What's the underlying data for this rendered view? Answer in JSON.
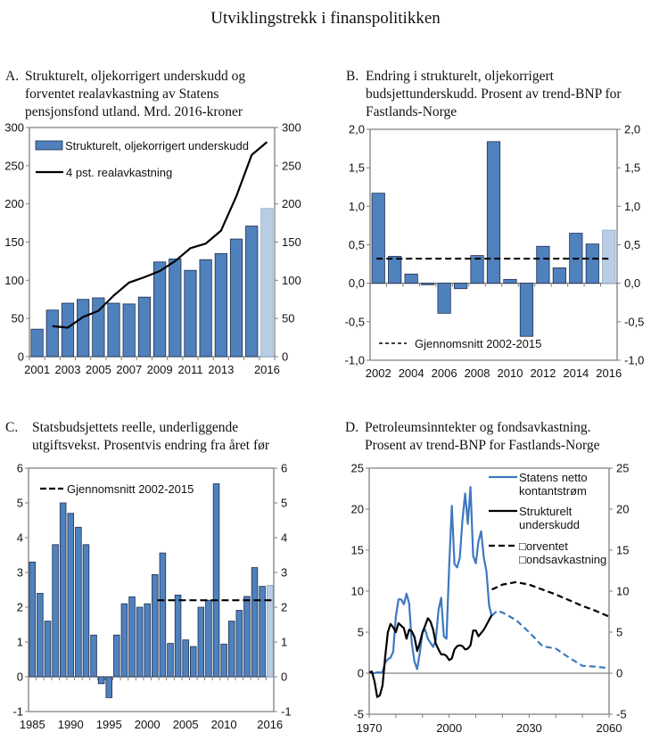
{
  "page": {
    "title": "Utviklingstrekk i finanspolitikken"
  },
  "colors": {
    "bar": "#4f81bd",
    "bar_border": "#1f3050",
    "bar_projection": "#b9cde5",
    "line_black": "#000000",
    "line_blue": "#3f78c0",
    "axis": "#7f7f7f"
  },
  "chart_data": [
    {
      "id": "A",
      "type": "bar",
      "letter": "A.",
      "title_lines": [
        "Strukturelt, oljekorrigert underskudd og",
        "forventet realavkastning av Statens",
        "pensjonsfond utland. Mrd. 2016-kroner"
      ],
      "categories": [
        2001,
        2002,
        2003,
        2004,
        2005,
        2006,
        2007,
        2008,
        2009,
        2010,
        2011,
        2012,
        2013,
        2014,
        2015,
        2016
      ],
      "x_tick_labels": [
        "2001",
        "2003",
        "2005",
        "2007",
        "2009",
        "2011",
        "2013",
        "2016"
      ],
      "x_tick_label_years": [
        2001,
        2003,
        2005,
        2007,
        2009,
        2011,
        2013,
        2016
      ],
      "ylim": [
        0,
        300
      ],
      "yticks": [
        0,
        50,
        100,
        150,
        200,
        250,
        300
      ],
      "ytick_labels": [
        "0",
        "50",
        "100",
        "150",
        "200",
        "250",
        "300"
      ],
      "series": [
        {
          "name": "Strukturelt, oljekorrigert underskudd",
          "kind": "bar",
          "values": [
            36,
            61,
            70,
            75,
            77,
            70,
            69,
            78,
            124,
            128,
            113,
            127,
            135,
            154,
            171,
            194
          ],
          "projection_from": 2016
        },
        {
          "name": "4 pst. realavkastning",
          "kind": "line",
          "x": [
            2002,
            2003,
            2004,
            2005,
            2006,
            2007,
            2008,
            2009,
            2010,
            2011,
            2012,
            2013,
            2014,
            2015,
            2016
          ],
          "values": [
            40,
            38,
            52,
            60,
            80,
            97,
            104,
            112,
            125,
            142,
            148,
            165,
            210,
            264,
            281
          ]
        }
      ],
      "legend": [
        "Strukturelt, oljekorrigert underskudd",
        "4 pst. realavkastning"
      ],
      "legend_position": "top-left",
      "grid": false
    },
    {
      "id": "B",
      "type": "bar",
      "letter": "B.",
      "title_lines": [
        "Endring i strukturelt, oljekorrigert",
        "budsjettunderskudd. Prosent av trend-BNP for",
        "Fastlands-Norge"
      ],
      "categories": [
        2002,
        2003,
        2004,
        2005,
        2006,
        2007,
        2008,
        2009,
        2010,
        2011,
        2012,
        2013,
        2014,
        2015,
        2016
      ],
      "x_tick_labels": [
        "2002",
        "2004",
        "2006",
        "2008",
        "2010",
        "2012",
        "2014",
        "2016"
      ],
      "x_tick_label_years": [
        2002,
        2004,
        2006,
        2008,
        2010,
        2012,
        2014,
        2016
      ],
      "ylim": [
        -1.0,
        2.0
      ],
      "yticks": [
        -1.0,
        -0.5,
        0.0,
        0.5,
        1.0,
        1.5,
        2.0
      ],
      "ytick_labels": [
        "-1,0",
        "-0,5",
        "0,0",
        "0,5",
        "1,0",
        "1,5",
        "2,0"
      ],
      "series": [
        {
          "name": "Endring i strukturelt, oljekorrigert budsjettunderskudd",
          "kind": "bar",
          "values": [
            1.17,
            0.35,
            0.12,
            -0.02,
            -0.39,
            -0.07,
            0.36,
            1.84,
            0.05,
            -0.69,
            0.48,
            0.2,
            0.65,
            0.51,
            0.69
          ],
          "projection_from": 2016
        },
        {
          "name": "Gjennomsnitt 2002-2015",
          "kind": "dashed-line",
          "x_range": [
            2002,
            2016
          ],
          "value": 0.32
        }
      ],
      "legend": [
        "Gjennomsnitt 2002-2015"
      ],
      "legend_position": "bottom-left",
      "grid": false
    },
    {
      "id": "C",
      "type": "bar",
      "letter": "C.",
      "title_lines": [
        "Statsbudsjettets reelle, underliggende",
        "utgiftsvekst. Prosentvis endring fra året før"
      ],
      "categories": [
        1985,
        1986,
        1987,
        1988,
        1989,
        1990,
        1991,
        1992,
        1993,
        1994,
        1995,
        1996,
        1997,
        1998,
        1999,
        2000,
        2001,
        2002,
        2003,
        2004,
        2005,
        2006,
        2007,
        2008,
        2009,
        2010,
        2011,
        2012,
        2013,
        2014,
        2015,
        2016
      ],
      "x_tick_labels": [
        "1985",
        "1990",
        "1995",
        "2000",
        "2005",
        "2010",
        "2016"
      ],
      "x_tick_label_years": [
        1985,
        1990,
        1995,
        2000,
        2005,
        2010,
        2016
      ],
      "ylim": [
        -1,
        6
      ],
      "yticks": [
        -1,
        0,
        1,
        2,
        3,
        4,
        5,
        6
      ],
      "ytick_labels": [
        "-1",
        "0",
        "1",
        "2",
        "3",
        "4",
        "5",
        "6"
      ],
      "series": [
        {
          "name": "Reell, underliggende utgiftsvekst",
          "kind": "bar",
          "values": [
            3.3,
            2.4,
            1.6,
            3.8,
            5.0,
            4.7,
            4.3,
            3.8,
            1.2,
            -0.2,
            -0.6,
            1.2,
            2.1,
            2.3,
            2.0,
            2.1,
            2.94,
            3.56,
            0.96,
            2.35,
            1.06,
            0.87,
            2.0,
            2.2,
            5.55,
            0.94,
            1.6,
            1.91,
            2.31,
            3.14,
            2.6,
            2.63
          ],
          "projection_from": 2016
        },
        {
          "name": "Gjennomsnitt 2002-2015",
          "kind": "dashed-line",
          "x_range": [
            2002,
            2016
          ],
          "value": 2.2
        }
      ],
      "legend": [
        "Gjennomsnitt 2002-2015"
      ],
      "legend_position": "top-left",
      "grid": false
    },
    {
      "id": "D",
      "type": "line",
      "letter": "D.",
      "title_lines": [
        "Petroleumsinntekter og fondsavkastning.",
        "Prosent av trend-BNP for Fastlands-Norge"
      ],
      "xlim": [
        1970,
        2060
      ],
      "x_tick_labels": [
        "1970",
        "2000",
        "2030",
        "2060"
      ],
      "x_tick_label_years": [
        1970,
        2000,
        2030,
        2060
      ],
      "x_minor_ticks": [
        1970,
        1980,
        1990,
        2000,
        2010,
        2020,
        2030,
        2040,
        2050,
        2060
      ],
      "ylim": [
        -5,
        25
      ],
      "yticks": [
        -5,
        0,
        5,
        10,
        15,
        20,
        25
      ],
      "ytick_labels": [
        "-5",
        "0",
        "5",
        "10",
        "15",
        "20",
        "25"
      ],
      "series": [
        {
          "name": "Statens netto kontantstrøm",
          "kind": "line",
          "color": "#3f78c0",
          "x": [
            1971,
            1972,
            1973,
            1974,
            1975,
            1976,
            1977,
            1978,
            1979,
            1980,
            1981,
            1982,
            1983,
            1984,
            1985,
            1986,
            1987,
            1988,
            1989,
            1990,
            1991,
            1992,
            1993,
            1994,
            1995,
            1996,
            1997,
            1998,
            1999,
            2000,
            2001,
            2002,
            2003,
            2004,
            2005,
            2006,
            2007,
            2008,
            2009,
            2010,
            2011,
            2012,
            2013,
            2014,
            2015,
            2016
          ],
          "values": [
            0,
            0,
            0.1,
            0.1,
            0.1,
            1.3,
            1.7,
            1.9,
            2.6,
            6.9,
            9.0,
            9.0,
            8.4,
            9.7,
            8.5,
            3.6,
            1.4,
            0.5,
            2.5,
            5.0,
            5.3,
            4.2,
            3.7,
            3.2,
            4.1,
            7.7,
            9.2,
            4.5,
            4.2,
            13.0,
            20.4,
            13.3,
            12.9,
            14.1,
            18.7,
            21.9,
            18.2,
            22.7,
            14.3,
            13.4,
            16.1,
            17.3,
            14.1,
            12.4,
            8.2,
            7.0
          ]
        },
        {
          "name": "Statens netto kontantstrøm (projeksjon)",
          "kind": "dashed-line",
          "color": "#3f78c0",
          "x": [
            2016,
            2018,
            2020,
            2025,
            2030,
            2035,
            2040,
            2045,
            2050,
            2055,
            2060
          ],
          "values": [
            7.0,
            7.6,
            7.4,
            6.5,
            5.0,
            3.3,
            3.0,
            1.9,
            0.9,
            0.8,
            0.6
          ]
        },
        {
          "name": "Strukturelt underskudd",
          "kind": "line",
          "color": "#000000",
          "x": [
            1970,
            1971,
            1972,
            1973,
            1974,
            1975,
            1976,
            1977,
            1978,
            1979,
            1980,
            1981,
            1982,
            1983,
            1984,
            1985,
            1986,
            1987,
            1988,
            1989,
            1990,
            1991,
            1992,
            1993,
            1994,
            1995,
            1996,
            1997,
            1998,
            1999,
            2000,
            2001,
            2002,
            2003,
            2004,
            2005,
            2006,
            2007,
            2008,
            2009,
            2010,
            2011,
            2012,
            2013,
            2014,
            2015,
            2016
          ],
          "values": [
            0.1,
            0.2,
            -1.0,
            -2.9,
            -2.7,
            -1.5,
            2.0,
            5.0,
            6.0,
            5.6,
            5.0,
            6.1,
            5.8,
            5.5,
            4.2,
            5.3,
            5.1,
            4.4,
            2.7,
            3.7,
            5.0,
            5.8,
            6.7,
            6.3,
            5.3,
            3.6,
            2.9,
            2.3,
            2.3,
            2.1,
            1.6,
            1.8,
            2.9,
            3.3,
            3.4,
            3.3,
            2.9,
            3.0,
            3.4,
            5.2,
            5.2,
            4.5,
            4.9,
            5.3,
            5.9,
            6.5,
            7.1
          ]
        },
        {
          "name": "Forventet fondsavkastning",
          "kind": "dashed-line",
          "color": "#000000",
          "x": [
            2016,
            2020,
            2025,
            2030,
            2035,
            2040,
            2045,
            2050,
            2055,
            2060
          ],
          "values": [
            10.2,
            10.8,
            11.1,
            10.8,
            10.2,
            9.6,
            8.9,
            8.2,
            7.6,
            6.9
          ]
        }
      ],
      "legend": [
        {
          "lines": [
            "Statens netto",
            "kontantstrøm"
          ],
          "style": "solid-blue"
        },
        {
          "lines": [
            "Strukturelt",
            "underskudd"
          ],
          "style": "solid-black"
        },
        {
          "lines": [
            "□orventet",
            "□ondsavkastning"
          ],
          "style": "dashed-black"
        }
      ],
      "legend_position": "top-right",
      "grid": false
    }
  ]
}
